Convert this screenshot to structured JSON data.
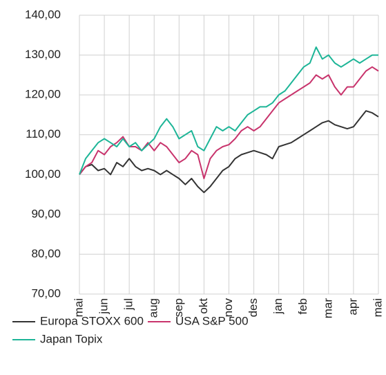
{
  "chart_data": {
    "type": "line",
    "categories": [
      "mai",
      null,
      null,
      null,
      "jun",
      null,
      null,
      null,
      "jul",
      null,
      null,
      null,
      "aug",
      null,
      null,
      null,
      "sep",
      null,
      null,
      null,
      "okt",
      null,
      null,
      null,
      "nov",
      null,
      null,
      null,
      "des",
      null,
      null,
      null,
      "jan",
      null,
      null,
      null,
      "feb",
      null,
      null,
      null,
      "mar",
      null,
      null,
      null,
      "apr",
      null,
      null,
      null,
      "mai"
    ],
    "series": [
      {
        "name": "Europa STOXX 600",
        "color": "#333333",
        "values": [
          100,
          102,
          102.5,
          101,
          101.5,
          100,
          103,
          102,
          104,
          102,
          101,
          101.5,
          101,
          100,
          101,
          100,
          99,
          97.5,
          99,
          97,
          95.5,
          97,
          99,
          101,
          102,
          104,
          105,
          105.5,
          106,
          105.5,
          105,
          104,
          107,
          107.5,
          108,
          109,
          110,
          111,
          112,
          113,
          113.5,
          112.5,
          112,
          111.5,
          112,
          114,
          116,
          115.5,
          114.5
        ]
      },
      {
        "name": "USA S&P 500",
        "color": "#c8336c",
        "values": [
          100,
          102,
          103,
          106,
          105,
          107,
          108,
          109.5,
          107,
          107,
          106,
          108,
          106,
          108,
          107,
          105,
          103,
          104,
          106,
          105,
          99,
          104,
          106,
          107,
          107.5,
          109,
          111,
          112,
          111,
          112,
          114,
          116,
          118,
          119,
          120,
          121,
          122,
          123,
          125,
          124,
          125,
          122,
          120,
          122,
          122,
          124,
          126,
          127,
          126
        ]
      },
      {
        "name": "Japan Topix",
        "color": "#1db597",
        "values": [
          100,
          104,
          106,
          108,
          109,
          108,
          107,
          109,
          107,
          108,
          106,
          107.5,
          109,
          112,
          114,
          112,
          109,
          110,
          111,
          107,
          106,
          109,
          112,
          111,
          112,
          111,
          113,
          115,
          116,
          117,
          117,
          118,
          120,
          121,
          123,
          125,
          127,
          128,
          132,
          129,
          130,
          128,
          127,
          128,
          129,
          128,
          129,
          130,
          130
        ]
      }
    ],
    "ylim": [
      70,
      140
    ],
    "yticks": [
      {
        "value": 70,
        "label": "70,00"
      },
      {
        "value": 80,
        "label": "80,00"
      },
      {
        "value": 90,
        "label": "90,00"
      },
      {
        "value": 100,
        "label": "100,00"
      },
      {
        "value": 110,
        "label": "110,00"
      },
      {
        "value": 120,
        "label": "120,00"
      },
      {
        "value": 130,
        "label": "130,00"
      },
      {
        "value": 140,
        "label": "140,00"
      }
    ],
    "grid": true,
    "legend": "bottom"
  }
}
